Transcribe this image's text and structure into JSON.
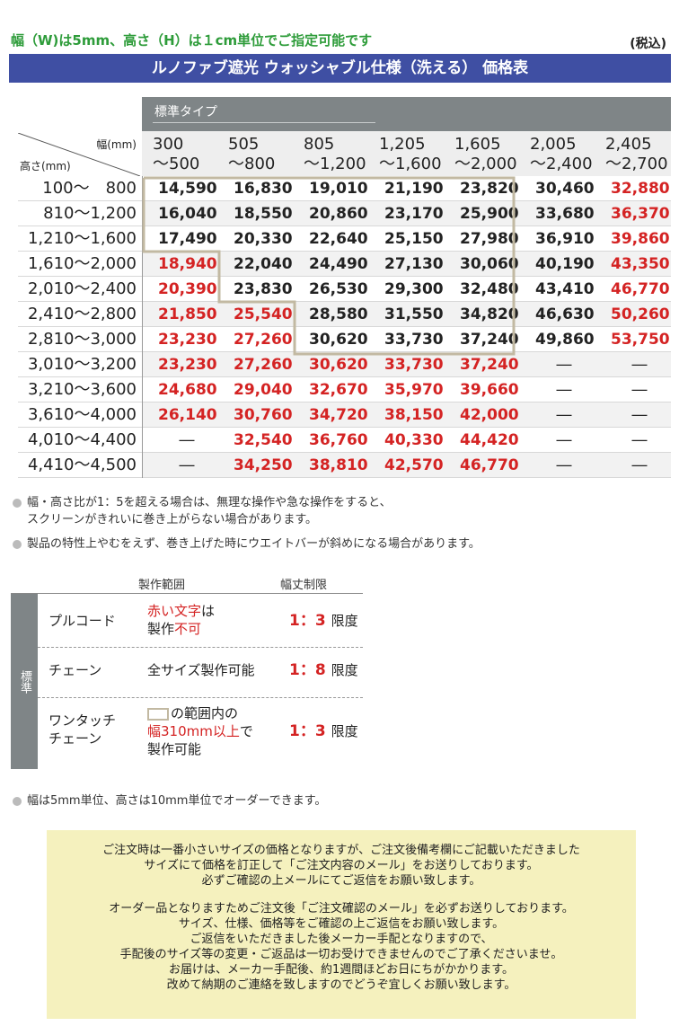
{
  "header": {
    "note": "幅（W)は5mm、高さ（H）は１cm単位でご指定可能です",
    "tax": "(税込)",
    "title": "ルノファブ遮光 ウォッシャブル仕様（洗える） 価格表"
  },
  "price_table": {
    "type_label": "標準タイプ",
    "width_axis_label": "幅(mm)",
    "height_axis_label": "高さ(mm)",
    "columns": [
      {
        "top": "300",
        "bottom": "～500"
      },
      {
        "top": "505",
        "bottom": "～800"
      },
      {
        "top": "805",
        "bottom": "～1,200"
      },
      {
        "top": "1,205",
        "bottom": "～1,600"
      },
      {
        "top": "1,605",
        "bottom": "～2,000"
      },
      {
        "top": "2,005",
        "bottom": "～2,400"
      },
      {
        "top": "2,405",
        "bottom": "～2,700"
      }
    ],
    "rows": [
      {
        "label": "100～　800",
        "cells": [
          {
            "v": "14,590",
            "red": false
          },
          {
            "v": "16,830",
            "red": false
          },
          {
            "v": "19,010",
            "red": false
          },
          {
            "v": "21,190",
            "red": false
          },
          {
            "v": "23,820",
            "red": false
          },
          {
            "v": "30,460",
            "red": false
          },
          {
            "v": "32,880",
            "red": true
          }
        ]
      },
      {
        "label": "810～1,200",
        "cells": [
          {
            "v": "16,040",
            "red": false
          },
          {
            "v": "18,550",
            "red": false
          },
          {
            "v": "20,860",
            "red": false
          },
          {
            "v": "23,170",
            "red": false
          },
          {
            "v": "25,900",
            "red": false
          },
          {
            "v": "33,680",
            "red": false
          },
          {
            "v": "36,370",
            "red": true
          }
        ]
      },
      {
        "label": "1,210～1,600",
        "cells": [
          {
            "v": "17,490",
            "red": false
          },
          {
            "v": "20,330",
            "red": false
          },
          {
            "v": "22,640",
            "red": false
          },
          {
            "v": "25,150",
            "red": false
          },
          {
            "v": "27,980",
            "red": false
          },
          {
            "v": "36,910",
            "red": false
          },
          {
            "v": "39,860",
            "red": true
          }
        ]
      },
      {
        "label": "1,610～2,000",
        "cells": [
          {
            "v": "18,940",
            "red": true
          },
          {
            "v": "22,040",
            "red": false
          },
          {
            "v": "24,490",
            "red": false
          },
          {
            "v": "27,130",
            "red": false
          },
          {
            "v": "30,060",
            "red": false
          },
          {
            "v": "40,190",
            "red": false
          },
          {
            "v": "43,350",
            "red": true
          }
        ]
      },
      {
        "label": "2,010～2,400",
        "cells": [
          {
            "v": "20,390",
            "red": true
          },
          {
            "v": "23,830",
            "red": false
          },
          {
            "v": "26,530",
            "red": false
          },
          {
            "v": "29,300",
            "red": false
          },
          {
            "v": "32,480",
            "red": false
          },
          {
            "v": "43,410",
            "red": false
          },
          {
            "v": "46,770",
            "red": true
          }
        ]
      },
      {
        "label": "2,410～2,800",
        "cells": [
          {
            "v": "21,850",
            "red": true
          },
          {
            "v": "25,540",
            "red": true
          },
          {
            "v": "28,580",
            "red": false
          },
          {
            "v": "31,550",
            "red": false
          },
          {
            "v": "34,820",
            "red": false
          },
          {
            "v": "46,630",
            "red": false
          },
          {
            "v": "50,260",
            "red": true
          }
        ]
      },
      {
        "label": "2,810～3,000",
        "cells": [
          {
            "v": "23,230",
            "red": true
          },
          {
            "v": "27,260",
            "red": true
          },
          {
            "v": "30,620",
            "red": false
          },
          {
            "v": "33,730",
            "red": false
          },
          {
            "v": "37,240",
            "red": false
          },
          {
            "v": "49,860",
            "red": false
          },
          {
            "v": "53,750",
            "red": true
          }
        ]
      },
      {
        "label": "3,010～3,200",
        "cells": [
          {
            "v": "23,230",
            "red": true
          },
          {
            "v": "27,260",
            "red": true
          },
          {
            "v": "30,620",
            "red": true
          },
          {
            "v": "33,730",
            "red": true
          },
          {
            "v": "37,240",
            "red": true
          },
          {
            "v": "―",
            "red": false
          },
          {
            "v": "―",
            "red": false
          }
        ]
      },
      {
        "label": "3,210～3,600",
        "cells": [
          {
            "v": "24,680",
            "red": true
          },
          {
            "v": "29,040",
            "red": true
          },
          {
            "v": "32,670",
            "red": true
          },
          {
            "v": "35,970",
            "red": true
          },
          {
            "v": "39,660",
            "red": true
          },
          {
            "v": "―",
            "red": false
          },
          {
            "v": "―",
            "red": false
          }
        ]
      },
      {
        "label": "3,610～4,000",
        "cells": [
          {
            "v": "26,140",
            "red": true
          },
          {
            "v": "30,760",
            "red": true
          },
          {
            "v": "34,720",
            "red": true
          },
          {
            "v": "38,150",
            "red": true
          },
          {
            "v": "42,000",
            "red": true
          },
          {
            "v": "―",
            "red": false
          },
          {
            "v": "―",
            "red": false
          }
        ]
      },
      {
        "label": "4,010～4,400",
        "cells": [
          {
            "v": "―",
            "red": false
          },
          {
            "v": "32,540",
            "red": true
          },
          {
            "v": "36,760",
            "red": true
          },
          {
            "v": "40,330",
            "red": true
          },
          {
            "v": "44,420",
            "red": true
          },
          {
            "v": "―",
            "red": false
          },
          {
            "v": "―",
            "red": false
          }
        ]
      },
      {
        "label": "4,410～4,500",
        "cells": [
          {
            "v": "―",
            "red": false
          },
          {
            "v": "34,250",
            "red": true
          },
          {
            "v": "38,810",
            "red": true
          },
          {
            "v": "42,570",
            "red": true
          },
          {
            "v": "46,770",
            "red": true
          },
          {
            "v": "―",
            "red": false
          },
          {
            "v": "―",
            "red": false
          }
        ]
      }
    ],
    "highlight_color": "#c2b9a2"
  },
  "notes": {
    "note1_line1": "幅・高さ比が1：5を超える場合は、無理な操作や急な操作をすると、",
    "note1_line2": "スクリーンがきれいに巻き上がらない場合があります。",
    "note2": "製品の特性上やむをえず、巻き上げた時にウエイトバーが斜めになる場合があります。",
    "note3": "幅は5mm単位、高さは10mm単位でオーダーできます。"
  },
  "spec": {
    "head_range": "製作範囲",
    "head_limit": "幅丈制限",
    "side_label": "標準",
    "limit_suffix": "限度",
    "pull": {
      "name": "プルコード",
      "range_red1": "赤い文字",
      "range_tail1": "は",
      "range_text2": "製作",
      "range_red2": "不可",
      "ratio": "1：3"
    },
    "chain": {
      "name": "チェーン",
      "range": "全サイズ製作可能",
      "ratio": "1：8"
    },
    "onetouch": {
      "name1": "ワンタッチ",
      "name2": "チェーン",
      "range1": "の範囲内の",
      "range2_red": "幅310mm以上",
      "range2_tail": "で",
      "range3": "製作可能",
      "ratio": "1：3"
    }
  },
  "info": {
    "lines_a": [
      "ご注文時は一番小さいサイズの価格となりますが、ご注文後備考欄にご記載いただきました",
      "サイズにて価格を訂正して「ご注文内容のメール」をお送りしております。",
      "必ずご確認の上メールにてご返信をお願い致します。"
    ],
    "lines_b": [
      "オーダー品となりますためご注文後「ご注文確認のメール」を必ずお送りしております。",
      "サイズ、仕様、価格等をご確認の上ご返信をお願い致します。",
      "ご返信をいただきました後メーカー手配となりますので、",
      "手配後のサイズ等の変更・ご返品は一切お受けできませんのでご了承くださいませ。",
      "お届けは、メーカー手配後、約1週間ほどお日にちがかかります。",
      "改めて納期のご連絡を致しますのでどうぞ宜しくお願い致します。"
    ]
  }
}
